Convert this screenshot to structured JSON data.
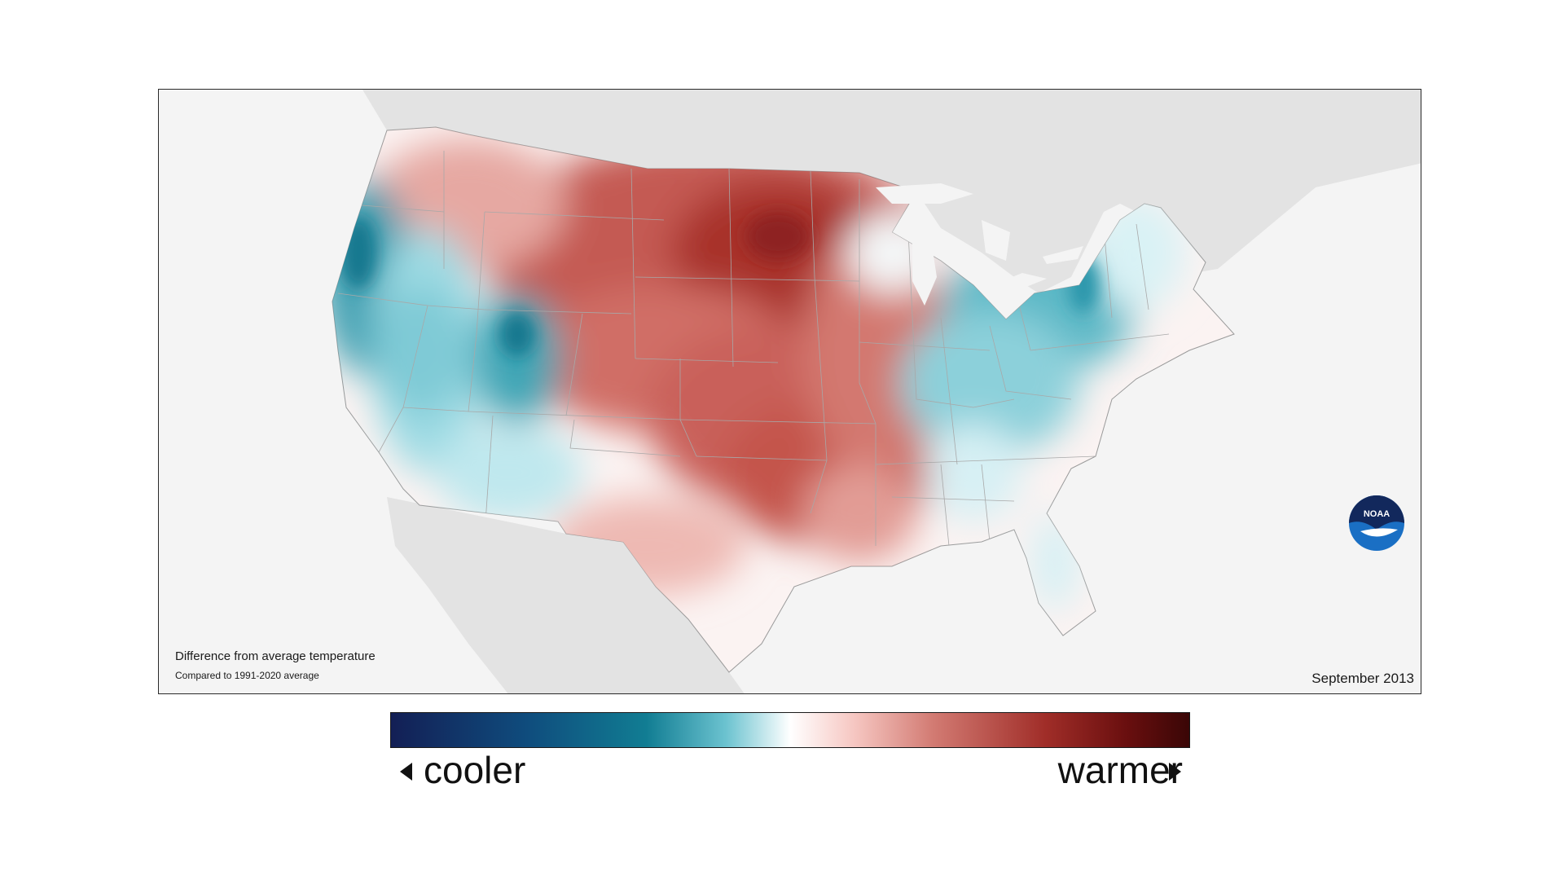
{
  "map": {
    "caption_title": "Difference from average temperature",
    "caption_subtitle": "Compared to 1991-2020 average",
    "date": "September 2013",
    "logo_text": "NOAA"
  },
  "legend": {
    "cooler_label": "cooler",
    "warmer_label": "warmer",
    "colors": {
      "coolest": "#131f55",
      "cool": "#117d93",
      "neutral": "#ffffff",
      "warm": "#d27a72",
      "warmest": "#3a0606"
    }
  },
  "icons": [
    "noaa-logo-icon",
    "arrow-left-icon",
    "arrow-right-icon"
  ]
}
